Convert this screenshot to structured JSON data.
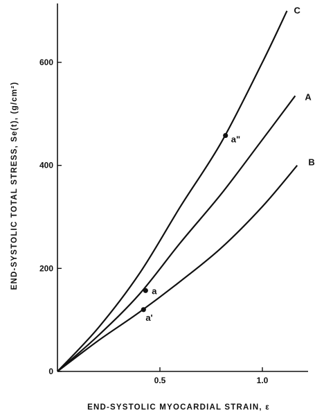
{
  "chart_data": {
    "type": "line",
    "xlabel": "END-SYSTOLIC MYOCARDIAL STRAIN, ε",
    "ylabel": "END-SYSTOLIC TOTAL STRESS, Se(t), (g/cm²)",
    "xlim": [
      0,
      1.2
    ],
    "ylim": [
      0,
      700
    ],
    "x_ticks": [
      {
        "value": 0.5,
        "label": "0.5"
      },
      {
        "value": 1.0,
        "label": "1.0"
      }
    ],
    "y_ticks": [
      {
        "value": 0,
        "label": "0"
      },
      {
        "value": 200,
        "label": "200"
      },
      {
        "value": 400,
        "label": "400"
      },
      {
        "value": 600,
        "label": "600"
      }
    ],
    "grid": false,
    "series": [
      {
        "name": "C",
        "x": [
          0,
          0.2,
          0.4,
          0.6,
          0.8,
          1.0,
          1.12
        ],
        "y": [
          0,
          85,
          190,
          320,
          445,
          600,
          700
        ]
      },
      {
        "name": "A",
        "x": [
          0,
          0.2,
          0.4,
          0.6,
          0.8,
          1.0,
          1.16
        ],
        "y": [
          0,
          70,
          150,
          250,
          345,
          450,
          535
        ]
      },
      {
        "name": "B",
        "x": [
          0,
          0.2,
          0.4,
          0.6,
          0.8,
          1.0,
          1.17
        ],
        "y": [
          0,
          60,
          115,
          175,
          240,
          320,
          400
        ]
      }
    ],
    "points": [
      {
        "label": "a\"",
        "x": 0.82,
        "y": 458
      },
      {
        "label": "a",
        "x": 0.43,
        "y": 157
      },
      {
        "label": "a'",
        "x": 0.42,
        "y": 120
      }
    ]
  }
}
